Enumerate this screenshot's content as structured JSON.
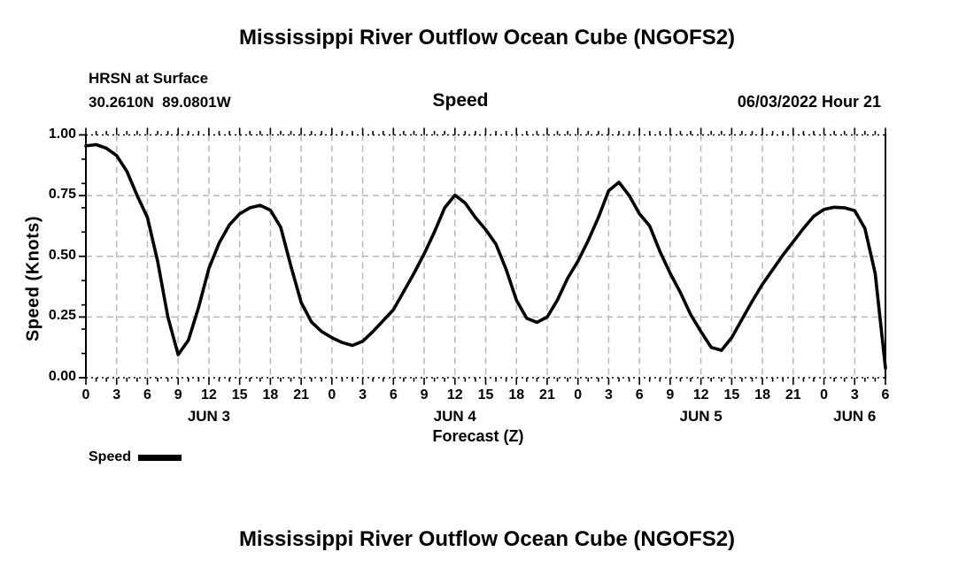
{
  "page": {
    "background": "#ffffff"
  },
  "chart_data": {
    "type": "line",
    "title": "Mississippi River Outflow Ocean Cube (NGOFS2)",
    "footer_title": "Mississippi River Outflow Ocean Cube (NGOFS2)",
    "station": "HRSN at Surface",
    "coords": "30.2610N  89.0801W",
    "panel_label": "Speed",
    "datetime_label": "06/03/2022 Hour 21",
    "xlabel": "Forecast (Z)",
    "ylabel": "Speed (Knots)",
    "legend": {
      "label": "Speed",
      "color": "#000000"
    },
    "x_axis": {
      "unit": "forecast hours (Z)",
      "range": [
        0,
        78
      ],
      "major_tick_step": 3,
      "minor_tick_step": 1,
      "tick_labels": [
        "0",
        "3",
        "6",
        "9",
        "12",
        "15",
        "18",
        "21",
        "0",
        "3",
        "6",
        "9",
        "12",
        "15",
        "18",
        "21",
        "0",
        "3",
        "6",
        "9",
        "12",
        "15",
        "18",
        "21",
        "0",
        "3",
        "6"
      ],
      "date_labels": [
        {
          "label": "JUN 3",
          "hour": 12
        },
        {
          "label": "JUN 4",
          "hour": 36
        },
        {
          "label": "JUN 5",
          "hour": 60
        },
        {
          "label": "JUN 6",
          "hour": 75
        }
      ]
    },
    "y_axis": {
      "range": [
        0,
        1
      ],
      "major_ticks": [
        0,
        0.25,
        0.5,
        0.75,
        1.0
      ],
      "tick_labels": [
        "0.00",
        "0.25",
        "0.50",
        "0.75",
        "1.00"
      ],
      "minor_tick_step": 0.1,
      "grid_values": [
        0.25,
        0.5,
        0.75
      ]
    },
    "grid": {
      "color": "#b8b8b8"
    },
    "series": [
      {
        "name": "Speed",
        "color": "#000000",
        "x": [
          0,
          1,
          2,
          3,
          4,
          5,
          6,
          7,
          8,
          9,
          10,
          11,
          12,
          13,
          14,
          15,
          16,
          17,
          18,
          19,
          20,
          21,
          22,
          23,
          24,
          25,
          26,
          27,
          28,
          29,
          30,
          31,
          32,
          33,
          34,
          35,
          36,
          37,
          38,
          39,
          40,
          41,
          42,
          43,
          44,
          45,
          46,
          47,
          48,
          49,
          50,
          51,
          52,
          53,
          54,
          55,
          56,
          57,
          58,
          59,
          60,
          61,
          62,
          63,
          64,
          65,
          66,
          67,
          68,
          69,
          70,
          71,
          72,
          73,
          74,
          75,
          76,
          77,
          78
        ],
        "values": [
          0.955,
          0.96,
          0.945,
          0.915,
          0.85,
          0.75,
          0.66,
          0.48,
          0.25,
          0.095,
          0.155,
          0.29,
          0.45,
          0.555,
          0.63,
          0.675,
          0.7,
          0.71,
          0.69,
          0.62,
          0.46,
          0.31,
          0.23,
          0.19,
          0.165,
          0.145,
          0.133,
          0.15,
          0.19,
          0.235,
          0.28,
          0.355,
          0.43,
          0.51,
          0.6,
          0.7,
          0.752,
          0.72,
          0.66,
          0.61,
          0.55,
          0.445,
          0.32,
          0.245,
          0.228,
          0.25,
          0.32,
          0.41,
          0.48,
          0.565,
          0.66,
          0.77,
          0.805,
          0.75,
          0.675,
          0.625,
          0.52,
          0.43,
          0.35,
          0.26,
          0.19,
          0.125,
          0.113,
          0.165,
          0.24,
          0.315,
          0.385,
          0.445,
          0.505,
          0.56,
          0.615,
          0.665,
          0.693,
          0.702,
          0.7,
          0.688,
          0.615,
          0.43,
          0.04
        ]
      }
    ]
  }
}
